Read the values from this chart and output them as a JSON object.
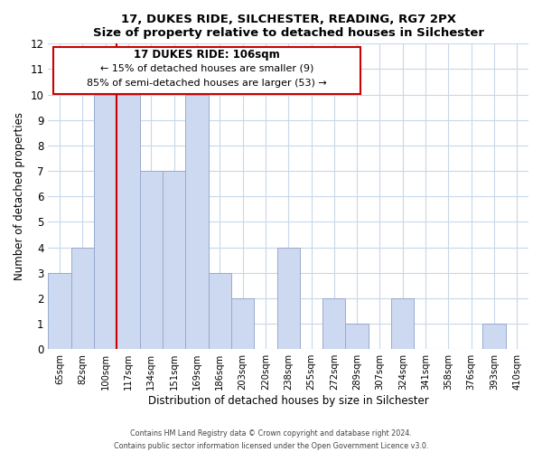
{
  "title": "17, DUKES RIDE, SILCHESTER, READING, RG7 2PX",
  "subtitle": "Size of property relative to detached houses in Silchester",
  "xlabel": "Distribution of detached houses by size in Silchester",
  "ylabel": "Number of detached properties",
  "bar_labels": [
    "65sqm",
    "82sqm",
    "100sqm",
    "117sqm",
    "134sqm",
    "151sqm",
    "169sqm",
    "186sqm",
    "203sqm",
    "220sqm",
    "238sqm",
    "255sqm",
    "272sqm",
    "289sqm",
    "307sqm",
    "324sqm",
    "341sqm",
    "358sqm",
    "376sqm",
    "393sqm",
    "410sqm"
  ],
  "bar_values": [
    3,
    4,
    10,
    10,
    7,
    7,
    10,
    3,
    2,
    0,
    4,
    0,
    2,
    1,
    0,
    2,
    0,
    0,
    0,
    1,
    0
  ],
  "bar_color": "#ccd9f0",
  "bar_edge_color": "#99aacc",
  "vline_color": "#cc0000",
  "annotation_title": "17 DUKES RIDE: 106sqm",
  "annotation_line1": "← 15% of detached houses are smaller (9)",
  "annotation_line2": "85% of semi-detached houses are larger (53) →",
  "annotation_box_color": "#ffffff",
  "annotation_box_edge": "#cc0000",
  "ylim": [
    0,
    12
  ],
  "yticks": [
    0,
    1,
    2,
    3,
    4,
    5,
    6,
    7,
    8,
    9,
    10,
    11,
    12
  ],
  "footer1": "Contains HM Land Registry data © Crown copyright and database right 2024.",
  "footer2": "Contains public sector information licensed under the Open Government Licence v3.0.",
  "grid_color": "#c8d8e8"
}
